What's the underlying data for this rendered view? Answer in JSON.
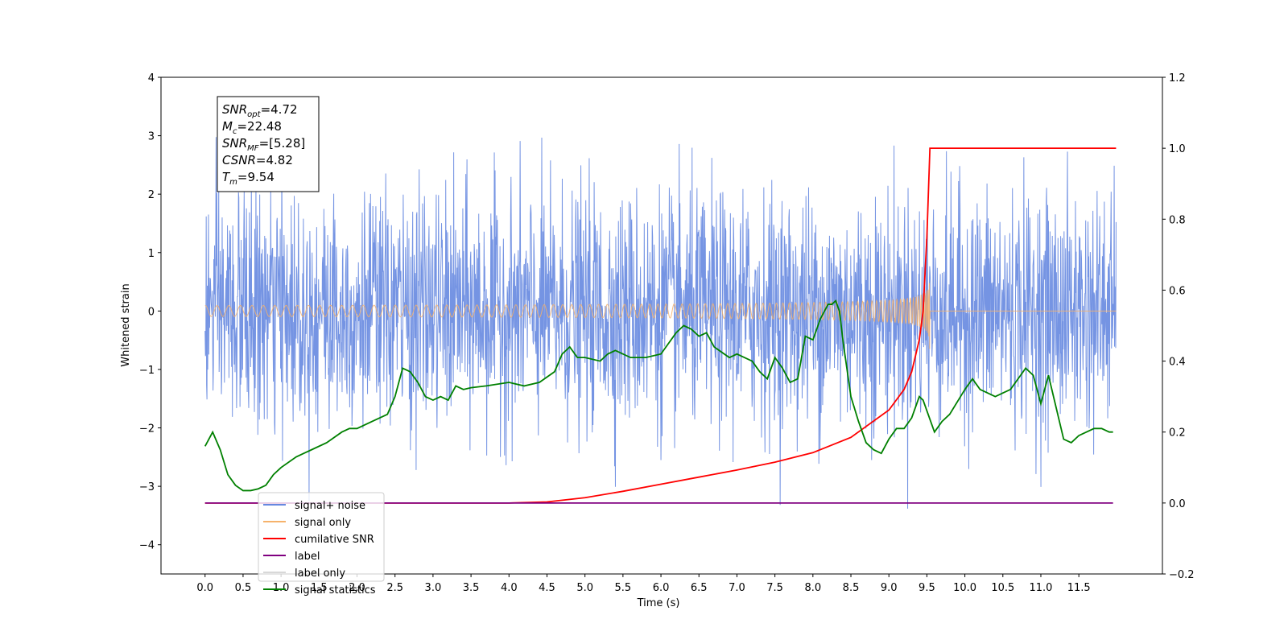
{
  "chart_data": {
    "type": "line",
    "title": "",
    "xlabel": "Time (s)",
    "ylabel": "Whitened strain",
    "ylabel_right": "",
    "xlim": [
      -0.58,
      12.6
    ],
    "ylim": [
      -4.5,
      4.0
    ],
    "ylim_right": [
      -0.2,
      1.2
    ],
    "x_ticks": [
      "0.0",
      "0.5",
      "1.0",
      "1.5",
      "2.0",
      "2.5",
      "3.0",
      "3.5",
      "4.0",
      "4.5",
      "5.0",
      "5.5",
      "6.0",
      "6.5",
      "7.0",
      "7.5",
      "8.0",
      "8.5",
      "9.0",
      "9.5",
      "10.0",
      "10.5",
      "11.0",
      "11.5"
    ],
    "y_ticks_left": [
      "−4",
      "−3",
      "−2",
      "−1",
      "0",
      "1",
      "2",
      "3",
      "4"
    ],
    "y_ticks_right": [
      "−0.2",
      "0.0",
      "0.2",
      "0.4",
      "0.6",
      "0.8",
      "1.0",
      "1.2"
    ],
    "grid": false,
    "legend_position": "lower-left",
    "annotation": {
      "lines": [
        {
          "sym": "SNR",
          "sub": "opt",
          "value": "=4.72"
        },
        {
          "sym": "M",
          "sub": "c",
          "value": "=22.48"
        },
        {
          "sym": "SNR",
          "sub": "MF",
          "value": "=[5.28]"
        },
        {
          "sym": "CSNR",
          "sub": "",
          "value": "=4.82"
        },
        {
          "sym": "T",
          "sub": "m",
          "value": "=9.54"
        }
      ]
    },
    "series": [
      {
        "name": "signal+ noise",
        "axis": "left",
        "color": "#6688e0",
        "kind": "noise",
        "x_range": [
          0.0,
          11.99
        ],
        "amplitude_sigma": 1.0,
        "range_observed": [
          -4.1,
          3.65
        ]
      },
      {
        "name": "signal only",
        "axis": "left",
        "color": "#f6b26b",
        "kind": "chirp",
        "x_range": [
          0.0,
          11.99
        ],
        "merger_time": 9.54,
        "peak_amplitude": 0.65
      },
      {
        "name": "cumilative SNR",
        "axis": "right",
        "color": "#ff0000",
        "x": [
          0.0,
          4.0,
          4.5,
          5.0,
          5.5,
          6.0,
          6.5,
          7.0,
          7.5,
          8.0,
          8.5,
          9.0,
          9.2,
          9.3,
          9.4,
          9.45,
          9.5,
          9.54,
          11.99
        ],
        "values": [
          0.0,
          0.0,
          0.003,
          0.015,
          0.033,
          0.053,
          0.073,
          0.093,
          0.115,
          0.142,
          0.185,
          0.262,
          0.32,
          0.37,
          0.46,
          0.54,
          0.75,
          1.0,
          1.0
        ]
      },
      {
        "name": "label",
        "axis": "right",
        "color": "#800080",
        "x": [
          0.0,
          11.95
        ],
        "values": [
          0.0,
          0.0
        ]
      },
      {
        "name": "label only",
        "axis": "right",
        "color": "#d8d8d8",
        "x": [],
        "values": []
      },
      {
        "name": "signal statistics",
        "axis": "right",
        "color": "#008000",
        "x": [
          0.0,
          0.05,
          0.1,
          0.2,
          0.3,
          0.4,
          0.5,
          0.6,
          0.7,
          0.8,
          0.9,
          1.0,
          1.2,
          1.4,
          1.6,
          1.8,
          1.9,
          2.0,
          2.2,
          2.4,
          2.5,
          2.6,
          2.7,
          2.8,
          2.9,
          3.0,
          3.1,
          3.2,
          3.3,
          3.4,
          3.5,
          3.7,
          4.0,
          4.2,
          4.4,
          4.6,
          4.7,
          4.8,
          4.9,
          5.0,
          5.2,
          5.3,
          5.4,
          5.6,
          5.8,
          6.0,
          6.2,
          6.3,
          6.4,
          6.5,
          6.6,
          6.7,
          6.9,
          7.0,
          7.1,
          7.2,
          7.3,
          7.4,
          7.5,
          7.6,
          7.7,
          7.8,
          7.9,
          8.0,
          8.1,
          8.2,
          8.25,
          8.3,
          8.35,
          8.4,
          8.5,
          8.6,
          8.7,
          8.8,
          8.9,
          9.0,
          9.1,
          9.2,
          9.3,
          9.4,
          9.45,
          9.5,
          9.6,
          9.7,
          9.8,
          10.0,
          10.1,
          10.2,
          10.3,
          10.4,
          10.5,
          10.6,
          10.7,
          10.8,
          10.9,
          11.0,
          11.1,
          11.2,
          11.3,
          11.4,
          11.5,
          11.6,
          11.7,
          11.8,
          11.9,
          11.95
        ],
        "values": [
          0.16,
          0.18,
          0.2,
          0.15,
          0.08,
          0.05,
          0.035,
          0.035,
          0.04,
          0.05,
          0.08,
          0.1,
          0.13,
          0.15,
          0.17,
          0.2,
          0.21,
          0.21,
          0.23,
          0.25,
          0.3,
          0.38,
          0.37,
          0.34,
          0.3,
          0.29,
          0.3,
          0.29,
          0.33,
          0.32,
          0.325,
          0.33,
          0.34,
          0.33,
          0.34,
          0.37,
          0.42,
          0.44,
          0.41,
          0.41,
          0.4,
          0.42,
          0.43,
          0.41,
          0.41,
          0.42,
          0.48,
          0.5,
          0.49,
          0.47,
          0.48,
          0.44,
          0.41,
          0.42,
          0.41,
          0.4,
          0.37,
          0.35,
          0.41,
          0.38,
          0.34,
          0.35,
          0.47,
          0.46,
          0.52,
          0.56,
          0.56,
          0.57,
          0.54,
          0.45,
          0.3,
          0.23,
          0.17,
          0.15,
          0.14,
          0.18,
          0.21,
          0.21,
          0.24,
          0.3,
          0.29,
          0.26,
          0.2,
          0.23,
          0.25,
          0.32,
          0.35,
          0.32,
          0.31,
          0.3,
          0.31,
          0.32,
          0.35,
          0.38,
          0.36,
          0.28,
          0.36,
          0.27,
          0.18,
          0.17,
          0.19,
          0.2,
          0.21,
          0.21,
          0.2,
          0.2
        ]
      }
    ]
  }
}
